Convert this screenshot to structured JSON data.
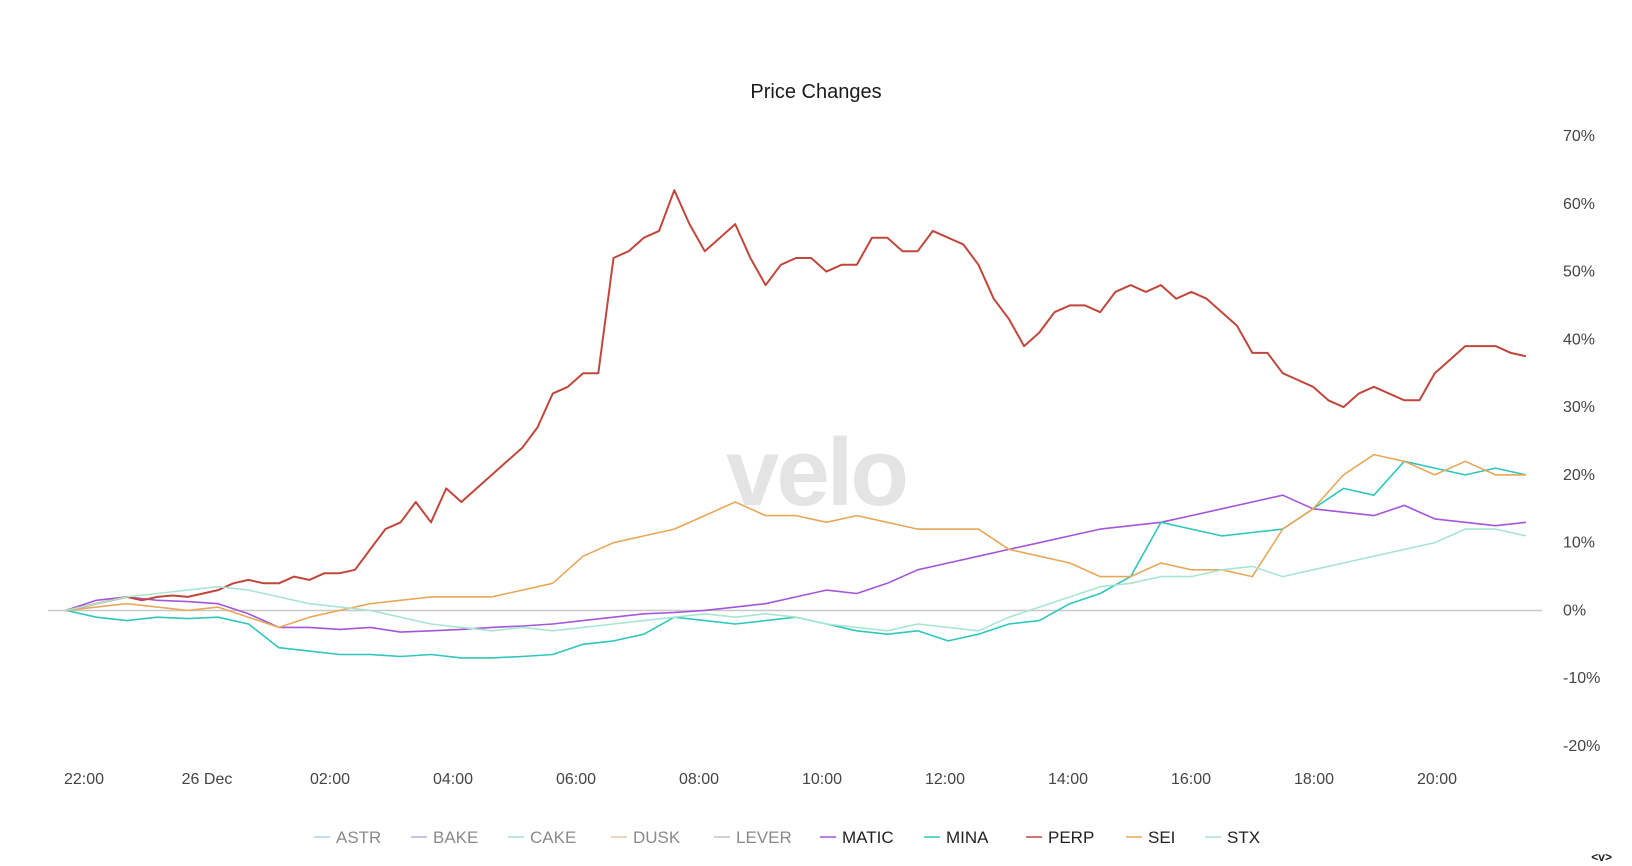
{
  "chart_data": {
    "type": "line",
    "title": "Price Changes",
    "watermark": "velo",
    "x_ticks": [
      "22:00",
      "26 Dec",
      "02:00",
      "04:00",
      "06:00",
      "08:00",
      "10:00",
      "12:00",
      "14:00",
      "16:00",
      "18:00",
      "20:00"
    ],
    "y_ticks": [
      "70%",
      "60%",
      "50%",
      "40%",
      "30%",
      "20%",
      "10%",
      "0%",
      "-10%",
      "-20%"
    ],
    "ylim": [
      -20,
      70
    ],
    "x_unit": "hours since 22:00 (25 Dec)",
    "xlim": [
      0,
      24
    ],
    "grid": false,
    "zero_line": true,
    "legend_position": "bottom-center",
    "series": [
      {
        "name": "ASTR",
        "color": "#a8d4e6",
        "active": false,
        "values": []
      },
      {
        "name": "BAKE",
        "color": "#b9acdc",
        "active": false,
        "values": []
      },
      {
        "name": "CAKE",
        "color": "#9fe0cf",
        "active": false,
        "values": []
      },
      {
        "name": "DUSK",
        "color": "#f0c6a4",
        "active": false,
        "values": []
      },
      {
        "name": "LEVER",
        "color": "#c4c4c4",
        "active": false,
        "values": []
      },
      {
        "name": "MATIC",
        "color": "#a455d9",
        "active": true,
        "values": [
          [
            0,
            0
          ],
          [
            0.5,
            1.5
          ],
          [
            1,
            2
          ],
          [
            1.5,
            1.5
          ],
          [
            2,
            1.3
          ],
          [
            2.5,
            1
          ],
          [
            3,
            -0.5
          ],
          [
            3.5,
            -2.5
          ],
          [
            4,
            -2.5
          ],
          [
            4.5,
            -2.8
          ],
          [
            5,
            -2.5
          ],
          [
            5.5,
            -3.2
          ],
          [
            6,
            -3
          ],
          [
            6.5,
            -2.8
          ],
          [
            7,
            -2.5
          ],
          [
            7.5,
            -2.3
          ],
          [
            8,
            -2
          ],
          [
            8.5,
            -1.5
          ],
          [
            9,
            -1
          ],
          [
            9.5,
            -0.5
          ],
          [
            10,
            -0.3
          ],
          [
            10.5,
            0
          ],
          [
            11,
            0.5
          ],
          [
            11.5,
            1
          ],
          [
            12,
            2
          ],
          [
            12.5,
            3
          ],
          [
            13,
            2.5
          ],
          [
            13.5,
            4
          ],
          [
            14,
            6
          ],
          [
            14.5,
            7
          ],
          [
            15,
            8
          ],
          [
            15.5,
            9
          ],
          [
            16,
            10
          ],
          [
            16.5,
            11
          ],
          [
            17,
            12
          ],
          [
            17.5,
            12.5
          ],
          [
            18,
            13
          ],
          [
            18.5,
            14
          ],
          [
            19,
            15
          ],
          [
            19.5,
            16
          ],
          [
            20,
            17
          ],
          [
            20.5,
            15
          ],
          [
            21,
            14.5
          ],
          [
            21.5,
            14
          ],
          [
            22,
            15.5
          ],
          [
            22.5,
            13.5
          ],
          [
            23,
            13
          ],
          [
            23.5,
            12.5
          ],
          [
            24,
            13
          ]
        ]
      },
      {
        "name": "MINA",
        "color": "#2fc6bb",
        "active": true,
        "values": [
          [
            0,
            0
          ],
          [
            0.5,
            -1
          ],
          [
            1,
            -1.5
          ],
          [
            1.5,
            -1
          ],
          [
            2,
            -1.2
          ],
          [
            2.5,
            -1
          ],
          [
            3,
            -2
          ],
          [
            3.5,
            -5.5
          ],
          [
            4,
            -6
          ],
          [
            4.5,
            -6.5
          ],
          [
            5,
            -6.5
          ],
          [
            5.5,
            -6.8
          ],
          [
            6,
            -6.5
          ],
          [
            6.5,
            -7
          ],
          [
            7,
            -7
          ],
          [
            7.5,
            -6.8
          ],
          [
            8,
            -6.5
          ],
          [
            8.5,
            -5
          ],
          [
            9,
            -4.5
          ],
          [
            9.5,
            -3.5
          ],
          [
            10,
            -1
          ],
          [
            10.5,
            -1.5
          ],
          [
            11,
            -2
          ],
          [
            11.5,
            -1.5
          ],
          [
            12,
            -1
          ],
          [
            12.5,
            -2
          ],
          [
            13,
            -3
          ],
          [
            13.5,
            -3.5
          ],
          [
            14,
            -3
          ],
          [
            14.5,
            -4.5
          ],
          [
            15,
            -3.5
          ],
          [
            15.5,
            -2
          ],
          [
            16,
            -1.5
          ],
          [
            16.5,
            1
          ],
          [
            17,
            2.5
          ],
          [
            17.5,
            5
          ],
          [
            18,
            13
          ],
          [
            18.5,
            12
          ],
          [
            19,
            11
          ],
          [
            19.5,
            11.5
          ],
          [
            20,
            12
          ],
          [
            20.5,
            15
          ],
          [
            21,
            18
          ],
          [
            21.5,
            17
          ],
          [
            22,
            22
          ],
          [
            22.5,
            21
          ],
          [
            23,
            20
          ],
          [
            23.5,
            21
          ],
          [
            24,
            20
          ]
        ]
      },
      {
        "name": "PERP",
        "color": "#c0473c",
        "active": true,
        "values": [
          [
            0,
            0
          ],
          [
            0.25,
            0.5
          ],
          [
            0.5,
            1
          ],
          [
            0.75,
            1.5
          ],
          [
            1,
            2
          ],
          [
            1.25,
            1.5
          ],
          [
            1.5,
            2
          ],
          [
            1.75,
            2.2
          ],
          [
            2,
            2
          ],
          [
            2.25,
            2.5
          ],
          [
            2.5,
            3
          ],
          [
            2.75,
            4
          ],
          [
            3,
            4.5
          ],
          [
            3.25,
            4
          ],
          [
            3.5,
            4
          ],
          [
            3.75,
            5
          ],
          [
            4,
            4.5
          ],
          [
            4.25,
            5.5
          ],
          [
            4.5,
            5.5
          ],
          [
            4.75,
            6
          ],
          [
            5,
            9
          ],
          [
            5.25,
            12
          ],
          [
            5.5,
            13
          ],
          [
            5.75,
            16
          ],
          [
            6,
            13
          ],
          [
            6.25,
            18
          ],
          [
            6.5,
            16
          ],
          [
            6.75,
            18
          ],
          [
            7,
            20
          ],
          [
            7.25,
            22
          ],
          [
            7.5,
            24
          ],
          [
            7.75,
            27
          ],
          [
            8,
            32
          ],
          [
            8.25,
            33
          ],
          [
            8.5,
            35
          ],
          [
            8.75,
            35
          ],
          [
            9,
            52
          ],
          [
            9.25,
            53
          ],
          [
            9.5,
            55
          ],
          [
            9.75,
            56
          ],
          [
            10,
            62
          ],
          [
            10.25,
            57
          ],
          [
            10.5,
            53
          ],
          [
            10.75,
            55
          ],
          [
            11,
            57
          ],
          [
            11.25,
            52
          ],
          [
            11.5,
            48
          ],
          [
            11.75,
            51
          ],
          [
            12,
            52
          ],
          [
            12.25,
            52
          ],
          [
            12.5,
            50
          ],
          [
            12.75,
            51
          ],
          [
            13,
            51
          ],
          [
            13.25,
            55
          ],
          [
            13.5,
            55
          ],
          [
            13.75,
            53
          ],
          [
            14,
            53
          ],
          [
            14.25,
            56
          ],
          [
            14.5,
            55
          ],
          [
            14.75,
            54
          ],
          [
            15,
            51
          ],
          [
            15.25,
            46
          ],
          [
            15.5,
            43
          ],
          [
            15.75,
            39
          ],
          [
            16,
            41
          ],
          [
            16.25,
            44
          ],
          [
            16.5,
            45
          ],
          [
            16.75,
            45
          ],
          [
            17,
            44
          ],
          [
            17.25,
            47
          ],
          [
            17.5,
            48
          ],
          [
            17.75,
            47
          ],
          [
            18,
            48
          ],
          [
            18.25,
            46
          ],
          [
            18.5,
            47
          ],
          [
            18.75,
            46
          ],
          [
            19,
            44
          ],
          [
            19.25,
            42
          ],
          [
            19.5,
            38
          ],
          [
            19.75,
            38
          ],
          [
            20,
            35
          ],
          [
            20.25,
            34
          ],
          [
            20.5,
            33
          ],
          [
            20.75,
            31
          ],
          [
            21,
            30
          ],
          [
            21.25,
            32
          ],
          [
            21.5,
            33
          ],
          [
            21.75,
            32
          ],
          [
            22,
            31
          ],
          [
            22.25,
            31
          ],
          [
            22.5,
            35
          ],
          [
            22.75,
            37
          ],
          [
            23,
            39
          ],
          [
            23.25,
            39
          ],
          [
            23.5,
            39
          ],
          [
            23.75,
            38
          ],
          [
            24,
            37.5
          ]
        ]
      },
      {
        "name": "SEI",
        "color": "#e8a85a",
        "active": true,
        "values": [
          [
            0,
            0
          ],
          [
            0.5,
            0.5
          ],
          [
            1,
            1
          ],
          [
            1.5,
            0.5
          ],
          [
            2,
            0
          ],
          [
            2.5,
            0.5
          ],
          [
            3,
            -1
          ],
          [
            3.5,
            -2.5
          ],
          [
            4,
            -1
          ],
          [
            4.5,
            0
          ],
          [
            5,
            1
          ],
          [
            5.5,
            1.5
          ],
          [
            6,
            2
          ],
          [
            6.5,
            2
          ],
          [
            7,
            2
          ],
          [
            7.5,
            3
          ],
          [
            8,
            4
          ],
          [
            8.5,
            8
          ],
          [
            9,
            10
          ],
          [
            9.5,
            11
          ],
          [
            10,
            12
          ],
          [
            10.5,
            14
          ],
          [
            11,
            16
          ],
          [
            11.5,
            14
          ],
          [
            12,
            14
          ],
          [
            12.5,
            13
          ],
          [
            13,
            14
          ],
          [
            13.5,
            13
          ],
          [
            14,
            12
          ],
          [
            14.5,
            12
          ],
          [
            15,
            12
          ],
          [
            15.5,
            9
          ],
          [
            16,
            8
          ],
          [
            16.5,
            7
          ],
          [
            17,
            5
          ],
          [
            17.5,
            5
          ],
          [
            18,
            7
          ],
          [
            18.5,
            6
          ],
          [
            19,
            6
          ],
          [
            19.5,
            5
          ],
          [
            20,
            12
          ],
          [
            20.5,
            15
          ],
          [
            21,
            20
          ],
          [
            21.5,
            23
          ],
          [
            22,
            22
          ],
          [
            22.5,
            20
          ],
          [
            23,
            22
          ],
          [
            23.5,
            20
          ],
          [
            24,
            20
          ]
        ]
      },
      {
        "name": "STX",
        "color": "#a8e6cf",
        "active": true,
        "values": [
          [
            0,
            0
          ],
          [
            0.5,
            1
          ],
          [
            1,
            2
          ],
          [
            1.5,
            2.5
          ],
          [
            2,
            3
          ],
          [
            2.5,
            3.5
          ],
          [
            3,
            3
          ],
          [
            3.5,
            2
          ],
          [
            4,
            1
          ],
          [
            4.5,
            0.5
          ],
          [
            5,
            0
          ],
          [
            5.5,
            -1
          ],
          [
            6,
            -2
          ],
          [
            6.5,
            -2.5
          ],
          [
            7,
            -3
          ],
          [
            7.5,
            -2.5
          ],
          [
            8,
            -3
          ],
          [
            8.5,
            -2.5
          ],
          [
            9,
            -2
          ],
          [
            9.5,
            -1.5
          ],
          [
            10,
            -1
          ],
          [
            10.5,
            -0.5
          ],
          [
            11,
            -1
          ],
          [
            11.5,
            -0.5
          ],
          [
            12,
            -1
          ],
          [
            12.5,
            -2
          ],
          [
            13,
            -2.5
          ],
          [
            13.5,
            -3
          ],
          [
            14,
            -2
          ],
          [
            14.5,
            -2.5
          ],
          [
            15,
            -3
          ],
          [
            15.5,
            -1
          ],
          [
            16,
            0.5
          ],
          [
            16.5,
            2
          ],
          [
            17,
            3.5
          ],
          [
            17.5,
            4
          ],
          [
            18,
            5
          ],
          [
            18.5,
            5
          ],
          [
            19,
            6
          ],
          [
            19.5,
            6.5
          ],
          [
            20,
            5
          ],
          [
            20.5,
            6
          ],
          [
            21,
            7
          ],
          [
            21.5,
            8
          ],
          [
            22,
            9
          ],
          [
            22.5,
            10
          ],
          [
            23,
            12
          ],
          [
            23.5,
            12
          ],
          [
            24,
            11
          ]
        ]
      }
    ]
  },
  "footer": {
    "corner_label": "<v>"
  }
}
